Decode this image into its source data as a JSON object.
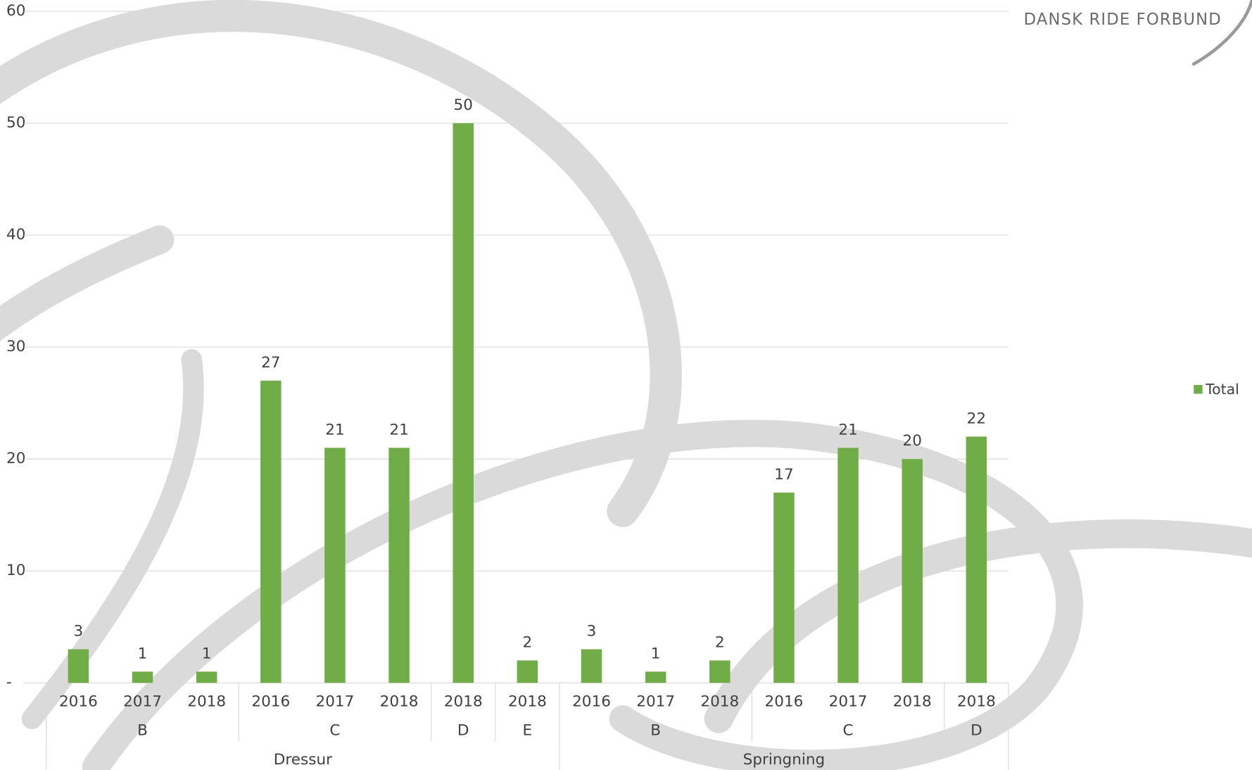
{
  "brand": "DANSK RIDE FORBUND",
  "chart_data": {
    "type": "bar",
    "categories": [
      "2016",
      "2017",
      "2018",
      "2016",
      "2017",
      "2018",
      "2018",
      "2018",
      "2016",
      "2017",
      "2018",
      "2016",
      "2017",
      "2018",
      "2018"
    ],
    "category_level2": [
      "B",
      null,
      null,
      "C",
      null,
      null,
      "D",
      "E",
      "B",
      null,
      null,
      "C",
      null,
      null,
      "D"
    ],
    "category_level3": [
      "Dressur",
      null,
      null,
      null,
      null,
      null,
      null,
      null,
      "Springning",
      null,
      null,
      null,
      null,
      null,
      null
    ],
    "series": [
      {
        "name": "Total",
        "color": "#70ad47",
        "values": [
          3,
          1,
          1,
          27,
          21,
          21,
          50,
          2,
          3,
          1,
          2,
          17,
          21,
          20,
          22
        ]
      }
    ],
    "ylim": [
      0,
      60
    ],
    "yticks": [
      {
        "value": 0,
        "label": "-"
      },
      10,
      20,
      30,
      40,
      50,
      60
    ],
    "grid": true,
    "data_labels": true,
    "legend": "right"
  }
}
